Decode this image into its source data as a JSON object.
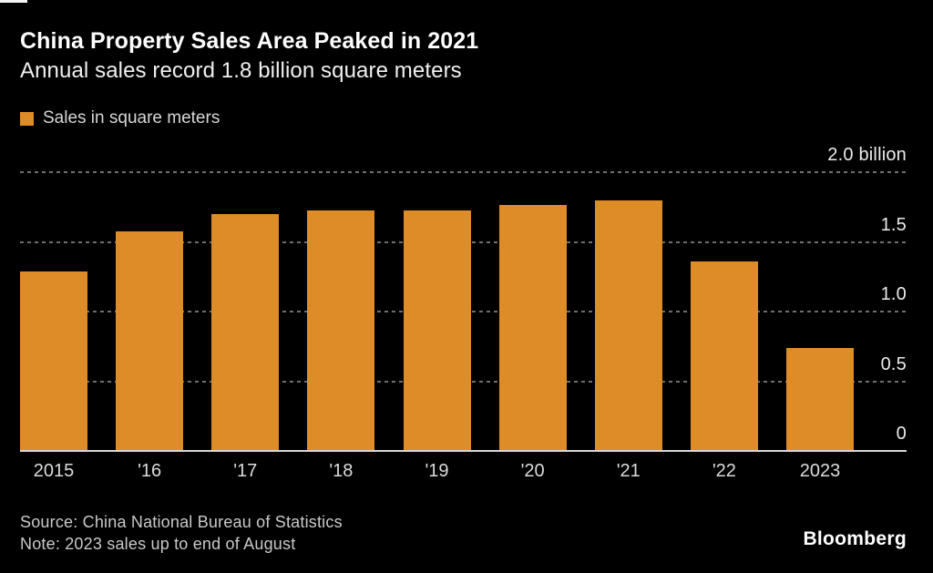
{
  "header": {
    "title": "China Property Sales Area Peaked in 2021",
    "subtitle": "Annual sales record 1.8 billion square meters"
  },
  "legend": {
    "label": "Sales in square meters",
    "swatch_color": "#dd8c28"
  },
  "chart_data": {
    "type": "bar",
    "title": "China Property Sales Area Peaked in 2021",
    "subtitle": "Annual sales record 1.8 billion square meters",
    "series_name": "Sales in square meters",
    "unit": "billion square meters",
    "categories": [
      "2015",
      "'16",
      "'17",
      "'18",
      "'19",
      "'20",
      "'21",
      "'22",
      "2023"
    ],
    "values": [
      1.28,
      1.57,
      1.69,
      1.72,
      1.72,
      1.76,
      1.79,
      1.35,
      0.73
    ],
    "ylim": [
      0,
      2.0
    ],
    "y_ticks": [
      {
        "v": 2.0,
        "label": "2.0 billion"
      },
      {
        "v": 1.5,
        "label": "1.5"
      },
      {
        "v": 1.0,
        "label": "1.0"
      },
      {
        "v": 0.5,
        "label": "0.5"
      },
      {
        "v": 0,
        "label": "0"
      }
    ],
    "bar_color": "#dd8c28",
    "grid": "horizontal dashed, gridlines on, no vertical grid",
    "legend_position": "top-left",
    "y_axis_position": "right",
    "background_color": "#000000"
  },
  "footer": {
    "source": "Source: China National Bureau of Statistics",
    "note": "Note: 2023 sales up to end of August",
    "brand": "Bloomberg"
  }
}
